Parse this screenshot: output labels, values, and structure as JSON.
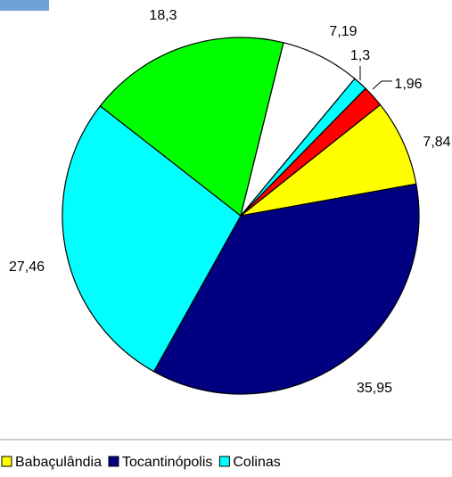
{
  "chart_data": {
    "type": "pie",
    "categories": [
      "Babaçulândia",
      "Tocantinópolis",
      "Colinas",
      null,
      null,
      null,
      null
    ],
    "values": [
      7.84,
      35.95,
      27.46,
      18.3,
      7.19,
      1.3,
      1.96
    ],
    "value_labels": [
      "7,84",
      "35,95",
      "27,46",
      "18,3",
      "7,19",
      "1,3",
      "1,96"
    ],
    "colors": [
      "#ffff00",
      "#000080",
      "#00ffff",
      "#00ff00",
      "#ffffff",
      "#00ffff",
      "#ff0000"
    ],
    "legend": "bottom"
  }
}
